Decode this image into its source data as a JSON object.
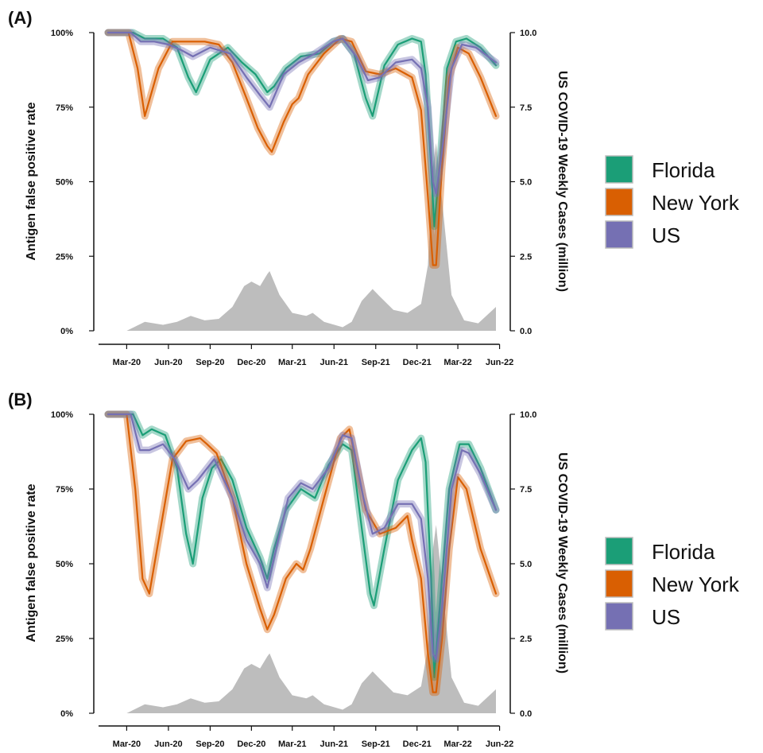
{
  "colors": {
    "florida": "#1b9e77",
    "new_york": "#d95f02",
    "us": "#7570b3",
    "cases": "#bdbdbd"
  },
  "chart_data": [
    {
      "type": "line",
      "panel_label": "(A)",
      "ylabel": "Antigen false positive rate",
      "y2label": "US COVID-19 Weekly Cases (million)",
      "ylim": [
        0,
        1
      ],
      "y2lim": [
        0,
        10
      ],
      "y_ticks": [
        "0%",
        "25%",
        "50%",
        "75%",
        "100%"
      ],
      "y2_ticks": [
        "0.0",
        "2.5",
        "5.0",
        "7.5",
        "10.0"
      ],
      "x_ticks": [
        "Mar-20",
        "Jun-20",
        "Sep-20",
        "Dec-20",
        "Mar-21",
        "Jun-21",
        "Sep-21",
        "Dec-21",
        "Mar-22",
        "Jun-22"
      ],
      "x_start": "2020-01-20",
      "x_end": "2022-05-24",
      "cases_series": {
        "name": "US weekly cases",
        "x": [
          "2020-01-20",
          "2020-03-01",
          "2020-04-10",
          "2020-05-20",
          "2020-06-20",
          "2020-07-20",
          "2020-08-20",
          "2020-09-20",
          "2020-10-20",
          "2020-11-15",
          "2020-12-01",
          "2020-12-20",
          "2021-01-05",
          "2021-01-10",
          "2021-02-01",
          "2021-03-01",
          "2021-04-01",
          "2021-04-15",
          "2021-05-10",
          "2021-06-20",
          "2021-07-10",
          "2021-08-01",
          "2021-08-25",
          "2021-09-10",
          "2021-10-10",
          "2021-11-10",
          "2021-12-10",
          "2021-12-25",
          "2022-01-05",
          "2022-01-12",
          "2022-01-25",
          "2022-02-15",
          "2022-03-15",
          "2022-04-15",
          "2022-05-24"
        ],
        "values": [
          0,
          0,
          0.3,
          0.2,
          0.3,
          0.5,
          0.35,
          0.4,
          0.8,
          1.5,
          1.65,
          1.5,
          1.9,
          2.0,
          1.2,
          0.6,
          0.5,
          0.6,
          0.3,
          0.12,
          0.3,
          1.0,
          1.4,
          1.15,
          0.7,
          0.6,
          0.9,
          2.2,
          5.5,
          6.3,
          4.4,
          1.2,
          0.35,
          0.25,
          0.8
        ]
      },
      "series": [
        {
          "name": "Florida",
          "x": [
            "2020-01-20",
            "2020-03-15",
            "2020-04-10",
            "2020-05-20",
            "2020-06-20",
            "2020-07-15",
            "2020-08-01",
            "2020-09-01",
            "2020-10-10",
            "2020-11-10",
            "2020-12-10",
            "2021-01-05",
            "2021-01-20",
            "2021-02-15",
            "2021-03-20",
            "2021-04-30",
            "2021-05-30",
            "2021-06-20",
            "2021-07-15",
            "2021-08-10",
            "2021-08-25",
            "2021-09-20",
            "2021-10-20",
            "2021-11-20",
            "2021-12-10",
            "2021-12-20",
            "2022-01-01",
            "2022-01-08",
            "2022-01-20",
            "2022-02-05",
            "2022-02-25",
            "2022-03-20",
            "2022-04-20",
            "2022-05-24"
          ],
          "values": [
            1.0,
            1.0,
            0.98,
            0.98,
            0.95,
            0.85,
            0.8,
            0.91,
            0.95,
            0.9,
            0.86,
            0.8,
            0.82,
            0.88,
            0.92,
            0.93,
            0.97,
            0.98,
            0.93,
            0.78,
            0.72,
            0.89,
            0.96,
            0.98,
            0.97,
            0.86,
            0.55,
            0.35,
            0.55,
            0.88,
            0.97,
            0.98,
            0.95,
            0.89
          ]
        },
        {
          "name": "New York",
          "x": [
            "2020-01-20",
            "2020-03-05",
            "2020-03-25",
            "2020-04-10",
            "2020-05-10",
            "2020-06-10",
            "2020-07-10",
            "2020-08-20",
            "2020-09-20",
            "2020-10-20",
            "2020-11-20",
            "2020-12-15",
            "2021-01-05",
            "2021-01-15",
            "2021-02-10",
            "2021-03-01",
            "2021-03-15",
            "2021-04-05",
            "2021-05-10",
            "2021-06-15",
            "2021-07-10",
            "2021-08-10",
            "2021-09-10",
            "2021-10-15",
            "2021-11-20",
            "2021-12-10",
            "2021-12-25",
            "2022-01-05",
            "2022-01-12",
            "2022-01-25",
            "2022-02-10",
            "2022-03-01",
            "2022-03-25",
            "2022-04-20",
            "2022-05-24"
          ],
          "values": [
            1.0,
            1.0,
            0.88,
            0.72,
            0.88,
            0.97,
            0.97,
            0.97,
            0.96,
            0.9,
            0.78,
            0.68,
            0.62,
            0.6,
            0.7,
            0.76,
            0.78,
            0.86,
            0.93,
            0.98,
            0.97,
            0.87,
            0.86,
            0.88,
            0.85,
            0.74,
            0.45,
            0.22,
            0.22,
            0.55,
            0.85,
            0.95,
            0.93,
            0.85,
            0.72
          ]
        },
        {
          "name": "US",
          "x": [
            "2020-01-20",
            "2020-03-10",
            "2020-04-01",
            "2020-05-01",
            "2020-06-01",
            "2020-07-01",
            "2020-07-25",
            "2020-09-01",
            "2020-10-15",
            "2020-11-20",
            "2020-12-20",
            "2021-01-10",
            "2021-02-10",
            "2021-03-15",
            "2021-04-20",
            "2021-05-30",
            "2021-06-20",
            "2021-07-20",
            "2021-08-15",
            "2021-09-10",
            "2021-10-15",
            "2021-11-20",
            "2021-12-10",
            "2021-12-25",
            "2022-01-05",
            "2022-01-12",
            "2022-01-25",
            "2022-02-15",
            "2022-03-10",
            "2022-04-10",
            "2022-05-24"
          ],
          "values": [
            1.0,
            1.0,
            0.97,
            0.97,
            0.96,
            0.94,
            0.92,
            0.95,
            0.93,
            0.85,
            0.79,
            0.75,
            0.86,
            0.9,
            0.93,
            0.97,
            0.98,
            0.92,
            0.84,
            0.85,
            0.9,
            0.91,
            0.88,
            0.75,
            0.5,
            0.46,
            0.6,
            0.88,
            0.96,
            0.95,
            0.9
          ]
        }
      ],
      "legend_position": "right"
    },
    {
      "type": "line",
      "panel_label": "(B)",
      "ylabel": "Antigen false positive rate",
      "y2label": "US COVID-19 Weekly Cases (million)",
      "ylim": [
        0,
        1
      ],
      "y2lim": [
        0,
        10
      ],
      "y_ticks": [
        "0%",
        "25%",
        "50%",
        "75%",
        "100%"
      ],
      "y2_ticks": [
        "0.0",
        "2.5",
        "5.0",
        "7.5",
        "10.0"
      ],
      "x_ticks": [
        "Mar-20",
        "Jun-20",
        "Sep-20",
        "Dec-20",
        "Mar-21",
        "Jun-21",
        "Sep-21",
        "Dec-21",
        "Mar-22",
        "Jun-22"
      ],
      "x_start": "2020-01-20",
      "x_end": "2022-05-24",
      "cases_series": {
        "name": "US weekly cases",
        "x": [
          "2020-01-20",
          "2020-03-01",
          "2020-04-10",
          "2020-05-20",
          "2020-06-20",
          "2020-07-20",
          "2020-08-20",
          "2020-09-20",
          "2020-10-20",
          "2020-11-15",
          "2020-12-01",
          "2020-12-20",
          "2021-01-05",
          "2021-01-10",
          "2021-02-01",
          "2021-03-01",
          "2021-04-01",
          "2021-04-15",
          "2021-05-10",
          "2021-06-20",
          "2021-07-10",
          "2021-08-01",
          "2021-08-25",
          "2021-09-10",
          "2021-10-10",
          "2021-11-10",
          "2021-12-10",
          "2021-12-25",
          "2022-01-05",
          "2022-01-12",
          "2022-01-25",
          "2022-02-15",
          "2022-03-15",
          "2022-04-15",
          "2022-05-24"
        ],
        "values": [
          0,
          0,
          0.3,
          0.2,
          0.3,
          0.5,
          0.35,
          0.4,
          0.8,
          1.5,
          1.65,
          1.5,
          1.9,
          2.0,
          1.2,
          0.6,
          0.5,
          0.6,
          0.3,
          0.12,
          0.3,
          1.0,
          1.4,
          1.15,
          0.7,
          0.6,
          0.9,
          2.2,
          5.5,
          6.3,
          4.4,
          1.2,
          0.35,
          0.25,
          0.8
        ]
      },
      "series": [
        {
          "name": "Florida",
          "x": [
            "2020-01-20",
            "2020-03-15",
            "2020-04-05",
            "2020-04-25",
            "2020-05-25",
            "2020-06-20",
            "2020-07-10",
            "2020-07-25",
            "2020-08-15",
            "2020-09-05",
            "2020-09-25",
            "2020-10-20",
            "2020-11-20",
            "2020-12-20",
            "2021-01-05",
            "2021-01-20",
            "2021-02-15",
            "2021-03-20",
            "2021-04-20",
            "2021-05-20",
            "2021-06-20",
            "2021-07-10",
            "2021-08-01",
            "2021-08-20",
            "2021-08-28",
            "2021-09-20",
            "2021-10-20",
            "2021-11-20",
            "2021-12-10",
            "2021-12-20",
            "2022-01-01",
            "2022-01-08",
            "2022-01-20",
            "2022-02-10",
            "2022-03-05",
            "2022-03-25",
            "2022-04-20",
            "2022-05-24"
          ],
          "values": [
            1.0,
            1.0,
            0.93,
            0.95,
            0.93,
            0.82,
            0.6,
            0.5,
            0.72,
            0.82,
            0.85,
            0.78,
            0.62,
            0.52,
            0.45,
            0.55,
            0.68,
            0.75,
            0.72,
            0.83,
            0.9,
            0.88,
            0.62,
            0.4,
            0.36,
            0.55,
            0.78,
            0.88,
            0.92,
            0.84,
            0.45,
            0.12,
            0.35,
            0.75,
            0.9,
            0.9,
            0.82,
            0.68
          ]
        },
        {
          "name": "New York",
          "x": [
            "2020-01-20",
            "2020-03-01",
            "2020-03-20",
            "2020-04-05",
            "2020-04-20",
            "2020-05-15",
            "2020-06-10",
            "2020-07-10",
            "2020-08-10",
            "2020-08-25",
            "2020-09-15",
            "2020-10-20",
            "2020-11-20",
            "2020-12-20",
            "2021-01-05",
            "2021-01-20",
            "2021-02-15",
            "2021-03-10",
            "2021-03-25",
            "2021-04-10",
            "2021-05-10",
            "2021-06-15",
            "2021-07-05",
            "2021-08-10",
            "2021-09-10",
            "2021-10-15",
            "2021-11-10",
            "2021-11-20",
            "2021-12-10",
            "2021-12-25",
            "2022-01-05",
            "2022-01-12",
            "2022-01-25",
            "2022-02-10",
            "2022-03-01",
            "2022-03-20",
            "2022-04-20",
            "2022-05-24"
          ],
          "values": [
            1.0,
            1.0,
            0.75,
            0.45,
            0.4,
            0.62,
            0.85,
            0.91,
            0.92,
            0.9,
            0.87,
            0.72,
            0.5,
            0.35,
            0.28,
            0.33,
            0.45,
            0.5,
            0.48,
            0.55,
            0.72,
            0.92,
            0.95,
            0.68,
            0.6,
            0.62,
            0.66,
            0.58,
            0.45,
            0.2,
            0.07,
            0.07,
            0.25,
            0.55,
            0.79,
            0.75,
            0.55,
            0.4
          ]
        },
        {
          "name": "US",
          "x": [
            "2020-01-20",
            "2020-03-10",
            "2020-03-30",
            "2020-04-20",
            "2020-05-20",
            "2020-06-15",
            "2020-07-15",
            "2020-08-05",
            "2020-09-10",
            "2020-10-20",
            "2020-11-20",
            "2020-12-20",
            "2021-01-05",
            "2021-01-20",
            "2021-02-20",
            "2021-03-20",
            "2021-04-15",
            "2021-05-20",
            "2021-06-20",
            "2021-07-10",
            "2021-08-05",
            "2021-08-25",
            "2021-09-20",
            "2021-10-20",
            "2021-11-20",
            "2021-12-10",
            "2021-12-25",
            "2022-01-05",
            "2022-01-12",
            "2022-01-25",
            "2022-02-15",
            "2022-03-10",
            "2022-03-25",
            "2022-04-20",
            "2022-05-24"
          ],
          "values": [
            1.0,
            1.0,
            0.88,
            0.88,
            0.9,
            0.85,
            0.75,
            0.78,
            0.85,
            0.72,
            0.58,
            0.5,
            0.42,
            0.52,
            0.72,
            0.77,
            0.75,
            0.82,
            0.93,
            0.92,
            0.72,
            0.6,
            0.62,
            0.7,
            0.7,
            0.65,
            0.45,
            0.2,
            0.18,
            0.35,
            0.75,
            0.88,
            0.87,
            0.8,
            0.68
          ]
        }
      ],
      "legend_position": "right"
    }
  ]
}
